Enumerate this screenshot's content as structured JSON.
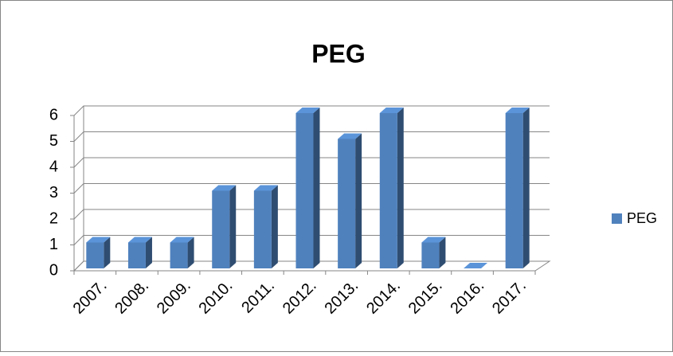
{
  "chart_data": {
    "type": "bar3d",
    "title": "PEG",
    "categories": [
      "2007.",
      "2008.",
      "2009.",
      "2010.",
      "2011.",
      "2012.",
      "2013.",
      "2014.",
      "2015.",
      "2016.",
      "2017."
    ],
    "series": [
      {
        "name": "PEG",
        "color": "#4f81bd",
        "values": [
          1,
          1,
          1,
          3,
          3,
          6,
          5,
          6,
          1,
          0,
          6
        ]
      }
    ],
    "ylim": [
      0,
      6
    ],
    "yticks": [
      0,
      1,
      2,
      3,
      4,
      5,
      6
    ],
    "grid": true,
    "legend": "right"
  }
}
